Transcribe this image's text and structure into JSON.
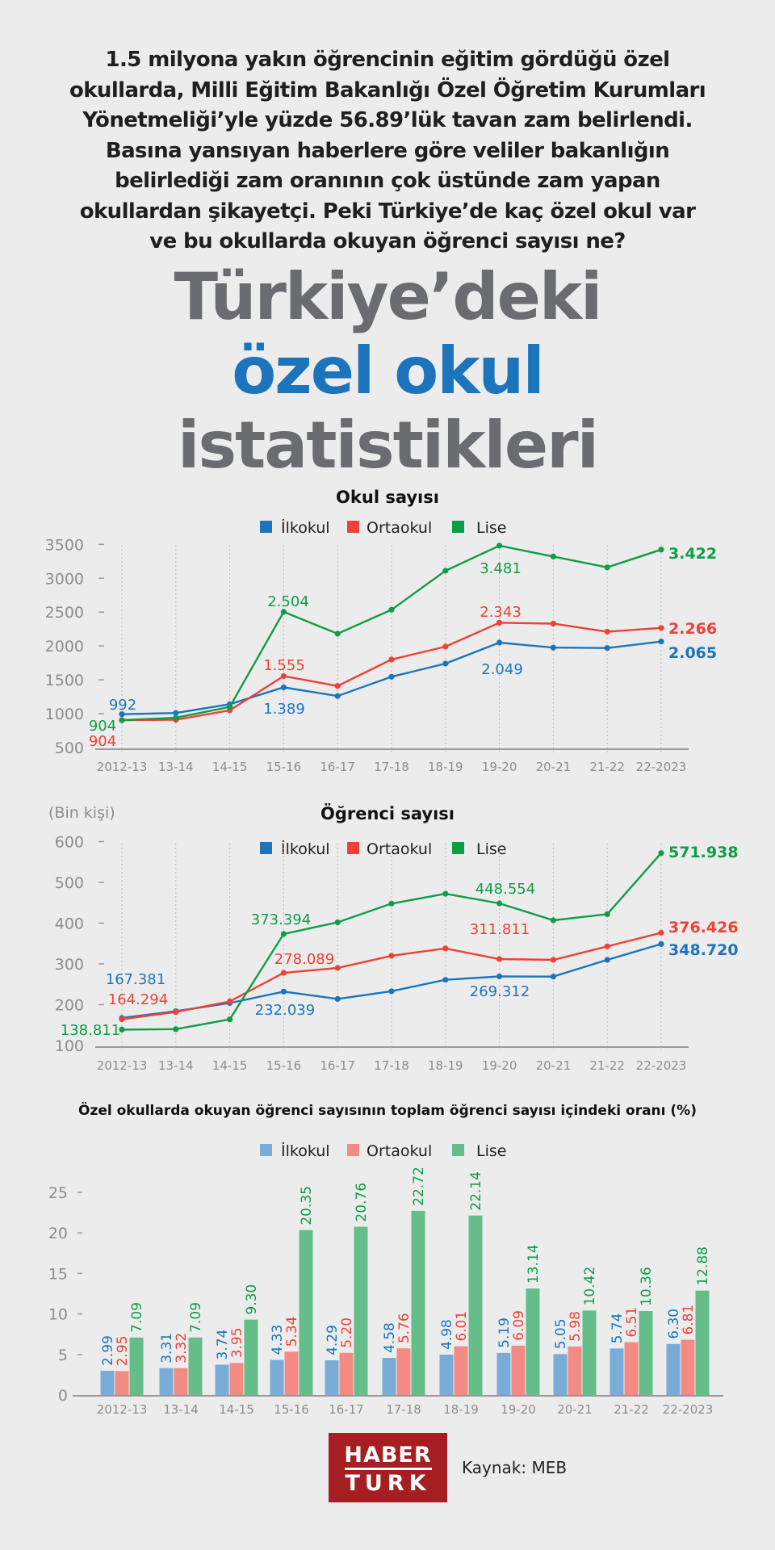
{
  "intro": {
    "lines": [
      "1.5 milyona yakın öğrencinin eğitim gördüğü özel",
      "okullarda, Milli Eğitim Bakanlığı Özel Öğretim Kurumları",
      "Yönetmeliği’yle yüzde 56.89’lük tavan zam belirlendi.",
      "Basına yansıyan haberlere göre veliler bakanlığın",
      "belirlediği zam oranının çok üstünde zam yapan",
      "okullardan şikayetçi. Peki Türkiye’de kaç özel okul var",
      "ve bu okullarda okuyan öğrenci sayısı ne?"
    ]
  },
  "headline": {
    "line1": "Türkiye’deki",
    "line2": "özel okul",
    "line3": "istatistikleri"
  },
  "colors": {
    "ilkokul": "#1c75bc",
    "ortaokul": "#ef4136",
    "lise": "#0f9d48",
    "ilkokul_bar": "#79acd6",
    "ortaokul_bar": "#f38a83",
    "lise_bar": "#65bd8a",
    "title_grey": "#6b6c6f",
    "title_blue": "#1c75bc",
    "logo_red": "#a51e22"
  },
  "footer": {
    "logo_line1": "HABER",
    "logo_line2": "TURK",
    "source": "Kaynak: MEB"
  },
  "chart_data": [
    {
      "type": "line",
      "title": "Okul sayısı",
      "xlabel": "",
      "ylabel": "",
      "ylim": [
        500,
        3500
      ],
      "yticks": [
        500,
        1000,
        1500,
        2000,
        2500,
        3000,
        3500
      ],
      "grid": "vertical dotted",
      "legend_position": "top",
      "categories": [
        "2012-13",
        "13-14",
        "14-15",
        "15-16",
        "16-17",
        "17-18",
        "18-19",
        "19-20",
        "20-21",
        "21-22",
        "22-2023"
      ],
      "series": [
        {
          "name": "İlkokul",
          "key": "ilkokul",
          "values": [
            992,
            1010,
            1140,
            1389,
            1260,
            1545,
            1740,
            2049,
            1975,
            1970,
            2065
          ]
        },
        {
          "name": "Ortaokul",
          "key": "ortaokul",
          "values": [
            904,
            910,
            1050,
            1555,
            1410,
            1800,
            1990,
            2343,
            2330,
            2210,
            2266
          ]
        },
        {
          "name": "Lise",
          "key": "lise",
          "values": [
            904,
            940,
            1100,
            2504,
            2180,
            2535,
            3110,
            3481,
            3320,
            3160,
            3422
          ]
        }
      ],
      "annotations": [
        {
          "series": "ilkokul",
          "index": 0,
          "text": "992"
        },
        {
          "series": "lise",
          "index": 0,
          "text": "904"
        },
        {
          "series": "ortaokul",
          "index": 0,
          "text": "904"
        },
        {
          "series": "lise",
          "index": 3,
          "text": "2.504"
        },
        {
          "series": "ortaokul",
          "index": 3,
          "text": "1.555"
        },
        {
          "series": "ilkokul",
          "index": 3,
          "text": "1.389"
        },
        {
          "series": "lise",
          "index": 7,
          "text": "3.481"
        },
        {
          "series": "ortaokul",
          "index": 7,
          "text": "2.343"
        },
        {
          "series": "ilkokul",
          "index": 7,
          "text": "2.049"
        },
        {
          "series": "lise",
          "index": 10,
          "text": "3.422"
        },
        {
          "series": "ortaokul",
          "index": 10,
          "text": "2.266"
        },
        {
          "series": "ilkokul",
          "index": 10,
          "text": "2.065"
        }
      ]
    },
    {
      "type": "line",
      "title": "Öğrenci sayısı",
      "unit_note": "(Bin kişi)",
      "xlabel": "",
      "ylabel": "(Bin kişi)",
      "ylim": [
        100,
        600
      ],
      "yticks": [
        100,
        200,
        300,
        400,
        500,
        600
      ],
      "grid": "vertical dotted",
      "legend_position": "top",
      "categories": [
        "2012-13",
        "13-14",
        "14-15",
        "15-16",
        "16-17",
        "17-18",
        "18-19",
        "19-20",
        "20-21",
        "21-22",
        "22-2023"
      ],
      "series": [
        {
          "name": "İlkokul",
          "key": "ilkokul",
          "values": [
            167.381,
            184,
            204,
            232.039,
            214,
            233,
            261,
            269.312,
            269,
            310,
            348.72
          ]
        },
        {
          "name": "Ortaokul",
          "key": "ortaokul",
          "values": [
            164.294,
            182,
            208,
            278.089,
            290,
            320,
            338,
            311.811,
            310,
            343,
            376.426
          ]
        },
        {
          "name": "Lise",
          "key": "lise",
          "values": [
            138.811,
            140,
            164,
            373.394,
            402,
            448,
            472,
            448.554,
            407,
            422,
            571.938
          ]
        }
      ],
      "annotations": [
        {
          "series": "ilkokul",
          "index": 0,
          "text": "167.381"
        },
        {
          "series": "ortaokul",
          "index": 0,
          "text": "164.294"
        },
        {
          "series": "lise",
          "index": 0,
          "text": "138.811"
        },
        {
          "series": "lise",
          "index": 3,
          "text": "373.394"
        },
        {
          "series": "ortaokul",
          "index": 3,
          "text": "278.089"
        },
        {
          "series": "ilkokul",
          "index": 3,
          "text": "232.039"
        },
        {
          "series": "lise",
          "index": 7,
          "text": "448.554"
        },
        {
          "series": "ortaokul",
          "index": 7,
          "text": "311.811"
        },
        {
          "series": "ilkokul",
          "index": 7,
          "text": "269.312"
        },
        {
          "series": "lise",
          "index": 10,
          "text": "571.938"
        },
        {
          "series": "ortaokul",
          "index": 10,
          "text": "376.426"
        },
        {
          "series": "ilkokul",
          "index": 10,
          "text": "348.720"
        }
      ]
    },
    {
      "type": "bar",
      "title": "Özel okullarda okuyan öğrenci sayısının toplam öğrenci sayısı içindeki oranı (%)",
      "xlabel": "",
      "ylabel": "%",
      "ylim": [
        0,
        25
      ],
      "yticks": [
        0,
        5,
        10,
        15,
        20,
        25
      ],
      "grid": "off",
      "legend_position": "top",
      "categories": [
        "2012-13",
        "13-14",
        "14-15",
        "15-16",
        "16-17",
        "17-18",
        "18-19",
        "19-20",
        "20-21",
        "21-22",
        "22-2023"
      ],
      "series": [
        {
          "name": "İlkokul",
          "key": "ilkokul",
          "values": [
            2.99,
            3.31,
            3.74,
            4.33,
            4.29,
            4.58,
            4.98,
            5.19,
            5.05,
            5.74,
            6.3
          ],
          "labels": [
            "2.99",
            "3.31",
            "3.74",
            "4.33",
            "4.29",
            "4.58",
            "4.98",
            "5.19",
            "5.05",
            "5.74",
            "6.30"
          ]
        },
        {
          "name": "Ortaokul",
          "key": "ortaokul",
          "values": [
            2.95,
            3.32,
            3.95,
            5.34,
            5.2,
            5.76,
            6.01,
            6.09,
            5.98,
            6.51,
            6.81
          ],
          "labels": [
            "2.95",
            "3.32",
            "3.95",
            "5.34",
            "5.20",
            "5.76",
            "6.01",
            "6.09",
            "5.98",
            "6.51",
            "6.81"
          ]
        },
        {
          "name": "Lise",
          "key": "lise",
          "values": [
            7.09,
            7.09,
            9.3,
            20.35,
            20.76,
            22.72,
            22.14,
            13.14,
            10.42,
            10.36,
            12.88
          ],
          "labels": [
            "7.09",
            "7.09",
            "9.30",
            "20.35",
            "20.76",
            "22.72",
            "22.14",
            "13.14",
            "10.42",
            "10.36",
            "12.88"
          ]
        }
      ]
    }
  ]
}
